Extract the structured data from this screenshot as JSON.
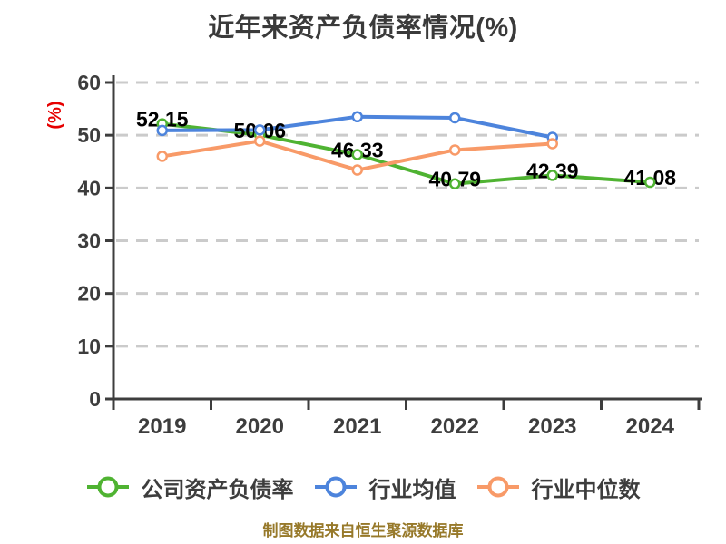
{
  "page": {
    "background": "#ffffff"
  },
  "chart_data": {
    "type": "line",
    "title": "近年来资产负债率情况(%)",
    "ylabel": "(%)",
    "xlabel": "",
    "categories": [
      "2019",
      "2020",
      "2021",
      "2022",
      "2023",
      "2024"
    ],
    "series": [
      {
        "name": "公司资产负债率",
        "color": "#4fb332",
        "values": [
          52.15,
          50.06,
          46.33,
          40.79,
          42.39,
          41.08
        ],
        "labels": [
          "52.15",
          "50.06",
          "46.33",
          "40.79",
          "42.39",
          "41.08"
        ],
        "show_labels": true,
        "marker": "circle-white-fill"
      },
      {
        "name": "行业均值",
        "color": "#4d84dc",
        "values": [
          50.9,
          51.0,
          53.5,
          53.3,
          49.6,
          null
        ],
        "show_labels": false,
        "marker": "circle-white-fill"
      },
      {
        "name": "行业中位数",
        "color": "#f89a68",
        "values": [
          46.0,
          48.9,
          43.4,
          47.2,
          48.4,
          null
        ],
        "show_labels": false,
        "marker": "circle-white-fill"
      }
    ],
    "ylim": [
      0,
      60
    ],
    "ytick_step": 10,
    "yticks": [
      0,
      10,
      20,
      30,
      40,
      50,
      60
    ],
    "grid": "horizontal-dashed",
    "legend_position": "bottom"
  },
  "footer": {
    "caption": "制图数据来自恒生聚源数据库",
    "color": "#97792a"
  },
  "colors": {
    "axis": "#3d3d3d",
    "grid": "#cbcbcb",
    "title": "#3a3a3a",
    "ylabel_red": "#e60000",
    "data_label": "#000000"
  }
}
